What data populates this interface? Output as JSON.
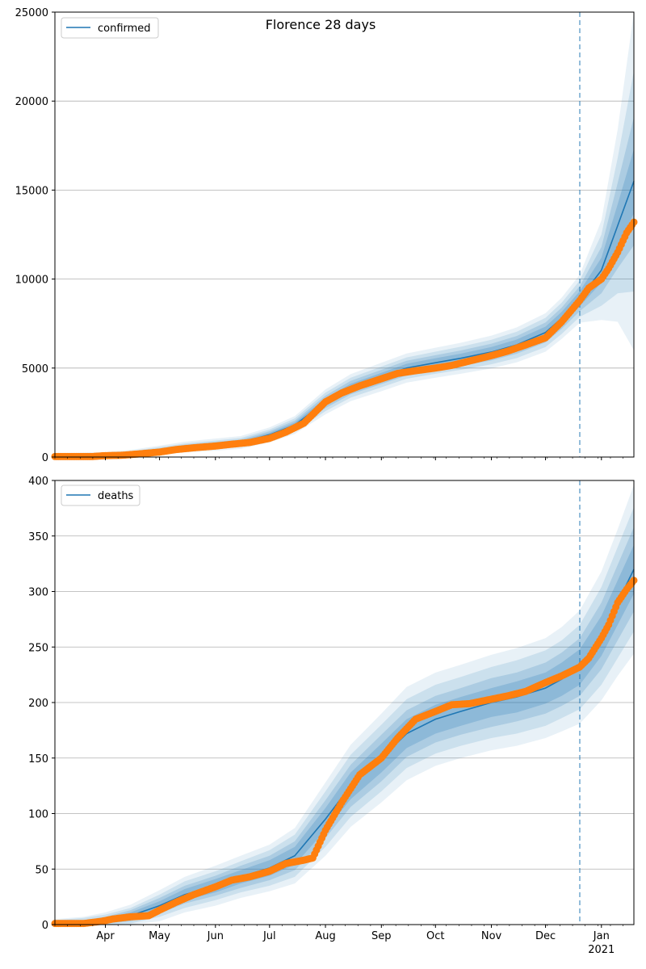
{
  "chart_data": [
    {
      "type": "line",
      "title": "Florence 28 days",
      "xlabel": "",
      "ylabel": "",
      "ylim": [
        0,
        25000
      ],
      "yticks": [
        0,
        5000,
        10000,
        15000,
        20000,
        25000
      ],
      "xrange": [
        "2020-03-04",
        "2021-01-19"
      ],
      "xticks": [
        {
          "date": "2020-04-01",
          "label": "Apr"
        },
        {
          "date": "2020-05-01",
          "label": "May"
        },
        {
          "date": "2020-06-01",
          "label": "Jun"
        },
        {
          "date": "2020-07-01",
          "label": "Jul"
        },
        {
          "date": "2020-08-01",
          "label": "Aug"
        },
        {
          "date": "2020-09-01",
          "label": "Sep"
        },
        {
          "date": "2020-10-01",
          "label": "Oct"
        },
        {
          "date": "2020-11-01",
          "label": "Nov"
        },
        {
          "date": "2020-12-01",
          "label": "Dec"
        },
        {
          "date": "2021-01-01",
          "label": "Jan",
          "sublabel": "2021"
        }
      ],
      "xtick_labels_shown": false,
      "grid": "y",
      "legend": {
        "position": "top-left",
        "entries": [
          "confirmed"
        ]
      },
      "vline_date": "2020-12-20",
      "model": {
        "name": "confirmed",
        "color": "#1f77b4",
        "x": [
          "2020-03-04",
          "2020-03-15",
          "2020-04-01",
          "2020-04-15",
          "2020-05-01",
          "2020-05-15",
          "2020-06-01",
          "2020-06-15",
          "2020-07-01",
          "2020-07-15",
          "2020-08-01",
          "2020-08-15",
          "2020-09-01",
          "2020-09-15",
          "2020-10-01",
          "2020-10-15",
          "2020-11-01",
          "2020-11-15",
          "2020-12-01",
          "2020-12-10",
          "2020-12-20",
          "2021-01-01",
          "2021-01-10",
          "2021-01-19"
        ],
        "y": [
          30,
          40,
          80,
          180,
          380,
          560,
          700,
          820,
          1250,
          1800,
          3100,
          3900,
          4500,
          5000,
          5300,
          5550,
          5900,
          6300,
          7000,
          7800,
          8900,
          10500,
          13000,
          15500
        ],
        "band_widths": [
          [
            40,
            80,
            130,
            200
          ],
          [
            40,
            80,
            130,
            200
          ],
          [
            40,
            80,
            130,
            200
          ],
          [
            50,
            90,
            150,
            220
          ],
          [
            60,
            110,
            180,
            260
          ],
          [
            70,
            130,
            200,
            300
          ],
          [
            80,
            150,
            230,
            340
          ],
          [
            90,
            160,
            250,
            360
          ],
          [
            110,
            200,
            300,
            420
          ],
          [
            140,
            250,
            370,
            500
          ],
          [
            200,
            350,
            520,
            700
          ],
          [
            220,
            380,
            560,
            760
          ],
          [
            230,
            400,
            580,
            800
          ],
          [
            240,
            410,
            600,
            820
          ],
          [
            250,
            420,
            620,
            840
          ],
          [
            260,
            440,
            650,
            870
          ],
          [
            280,
            470,
            690,
            920
          ],
          [
            300,
            500,
            740,
            980
          ],
          [
            330,
            560,
            820,
            1080
          ],
          [
            360,
            600,
            880,
            1160
          ],
          [
            420,
            700,
            1020,
            1350
          ],
          [
            700,
            1300,
            2000,
            2800
          ],
          [
            1200,
            2400,
            3800,
            5400
          ],
          [
            1800,
            3600,
            6200,
            9500
          ]
        ]
      },
      "observed": {
        "name": "observed",
        "color": "#ff7f0e",
        "x": [
          "2020-03-04",
          "2020-03-15",
          "2020-03-25",
          "2020-04-01",
          "2020-04-10",
          "2020-04-20",
          "2020-05-01",
          "2020-05-10",
          "2020-05-20",
          "2020-06-01",
          "2020-06-10",
          "2020-06-20",
          "2020-07-01",
          "2020-07-10",
          "2020-07-20",
          "2020-08-01",
          "2020-08-10",
          "2020-08-20",
          "2020-09-01",
          "2020-09-10",
          "2020-09-20",
          "2020-10-01",
          "2020-10-10",
          "2020-10-20",
          "2020-11-01",
          "2020-11-10",
          "2020-11-20",
          "2020-12-01",
          "2020-12-10",
          "2020-12-20",
          "2020-12-25",
          "2021-01-01",
          "2021-01-05",
          "2021-01-10",
          "2021-01-15",
          "2021-01-19"
        ],
        "y": [
          30,
          30,
          30,
          80,
          100,
          180,
          280,
          420,
          520,
          620,
          720,
          820,
          1050,
          1400,
          1900,
          3100,
          3600,
          4000,
          4400,
          4700,
          4850,
          5000,
          5150,
          5400,
          5700,
          5950,
          6300,
          6700,
          7600,
          8800,
          9500,
          10000,
          10600,
          11500,
          12600,
          13200
        ]
      }
    },
    {
      "type": "line",
      "title": "",
      "xlabel": "",
      "ylabel": "",
      "ylim": [
        0,
        400
      ],
      "yticks": [
        0,
        50,
        100,
        150,
        200,
        250,
        300,
        350,
        400
      ],
      "xrange": [
        "2020-03-04",
        "2021-01-19"
      ],
      "xticks": [
        {
          "date": "2020-04-01",
          "label": "Apr"
        },
        {
          "date": "2020-05-01",
          "label": "May"
        },
        {
          "date": "2020-06-01",
          "label": "Jun"
        },
        {
          "date": "2020-07-01",
          "label": "Jul"
        },
        {
          "date": "2020-08-01",
          "label": "Aug"
        },
        {
          "date": "2020-09-01",
          "label": "Sep"
        },
        {
          "date": "2020-10-01",
          "label": "Oct"
        },
        {
          "date": "2020-11-01",
          "label": "Nov"
        },
        {
          "date": "2020-12-01",
          "label": "Dec"
        },
        {
          "date": "2021-01-01",
          "label": "Jan",
          "sublabel": "2021"
        }
      ],
      "xtick_labels_shown": true,
      "grid": "y",
      "legend": {
        "position": "top-left",
        "entries": [
          "deaths"
        ]
      },
      "vline_date": "2020-12-20",
      "model": {
        "name": "deaths",
        "color": "#1f77b4",
        "x": [
          "2020-03-04",
          "2020-03-20",
          "2020-04-01",
          "2020-04-15",
          "2020-05-01",
          "2020-05-15",
          "2020-06-01",
          "2020-06-15",
          "2020-07-01",
          "2020-07-15",
          "2020-08-01",
          "2020-08-15",
          "2020-09-01",
          "2020-09-15",
          "2020-10-01",
          "2020-10-15",
          "2020-11-01",
          "2020-11-15",
          "2020-12-01",
          "2020-12-10",
          "2020-12-20",
          "2021-01-01",
          "2021-01-10",
          "2021-01-19"
        ],
        "y": [
          1,
          2,
          4,
          8,
          17,
          27,
          35,
          43,
          51,
          62,
          95,
          125,
          150,
          172,
          185,
          192,
          200,
          205,
          213,
          221,
          232,
          260,
          290,
          320
        ],
        "band_widths": [
          [
            1,
            2,
            3,
            4
          ],
          [
            1,
            2,
            4,
            5
          ],
          [
            2,
            3,
            5,
            7
          ],
          [
            3,
            5,
            7,
            10
          ],
          [
            4,
            7,
            10,
            14
          ],
          [
            5,
            8,
            12,
            16
          ],
          [
            6,
            9,
            13,
            18
          ],
          [
            6,
            10,
            14,
            19
          ],
          [
            7,
            11,
            16,
            21
          ],
          [
            8,
            13,
            19,
            25
          ],
          [
            10,
            17,
            25,
            33
          ],
          [
            12,
            19,
            28,
            37
          ],
          [
            13,
            21,
            30,
            40
          ],
          [
            13,
            21,
            31,
            42
          ],
          [
            13,
            21,
            31,
            42
          ],
          [
            13,
            21,
            31,
            42
          ],
          [
            13,
            22,
            32,
            43
          ],
          [
            14,
            22,
            33,
            44
          ],
          [
            14,
            23,
            34,
            45
          ],
          [
            15,
            24,
            35,
            47
          ],
          [
            16,
            26,
            38,
            51
          ],
          [
            18,
            30,
            44,
            58
          ],
          [
            20,
            34,
            50,
            66
          ],
          [
            22,
            38,
            56,
            76
          ]
        ]
      },
      "observed": {
        "name": "observed",
        "color": "#ff7f0e",
        "x": [
          "2020-03-04",
          "2020-03-20",
          "2020-03-30",
          "2020-04-05",
          "2020-04-15",
          "2020-04-25",
          "2020-05-01",
          "2020-05-10",
          "2020-05-20",
          "2020-06-01",
          "2020-06-10",
          "2020-06-20",
          "2020-07-01",
          "2020-07-10",
          "2020-07-20",
          "2020-07-25",
          "2020-08-01",
          "2020-08-10",
          "2020-08-20",
          "2020-09-01",
          "2020-09-10",
          "2020-09-20",
          "2020-10-01",
          "2020-10-10",
          "2020-10-20",
          "2020-11-01",
          "2020-11-10",
          "2020-11-20",
          "2020-12-01",
          "2020-12-10",
          "2020-12-20",
          "2020-12-25",
          "2021-01-01",
          "2021-01-05",
          "2021-01-10",
          "2021-01-15",
          "2021-01-19"
        ],
        "y": [
          1,
          1,
          3,
          5,
          7,
          8,
          13,
          20,
          27,
          34,
          40,
          43,
          48,
          55,
          58,
          60,
          85,
          110,
          135,
          150,
          168,
          185,
          192,
          198,
          199,
          203,
          206,
          210,
          218,
          224,
          232,
          240,
          258,
          270,
          290,
          302,
          310
        ]
      }
    }
  ]
}
